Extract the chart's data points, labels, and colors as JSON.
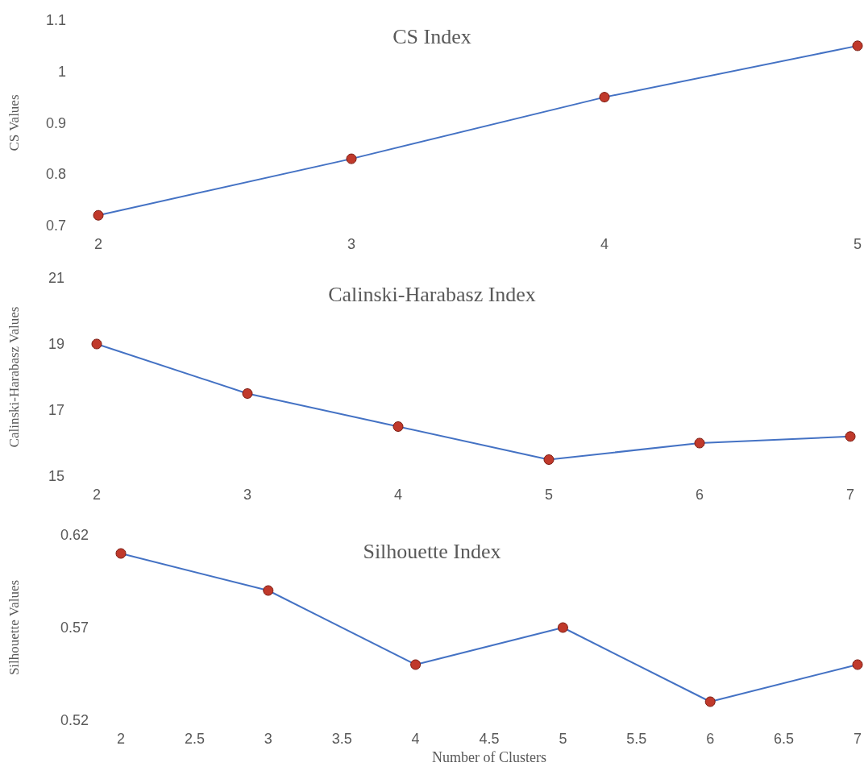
{
  "chart_data": [
    {
      "type": "line",
      "title": "CS Index",
      "ylabel": "CS Values",
      "x": [
        2,
        3,
        4,
        5
      ],
      "xlim": [
        2,
        5
      ],
      "xticks": [
        2,
        3,
        4,
        5
      ],
      "ylim": [
        0.7,
        1.1
      ],
      "yticks": [
        0.7,
        0.8,
        0.9,
        1,
        1.1
      ],
      "grid": false,
      "marker": "circle",
      "line_style": "solid",
      "series": [
        {
          "color": "#4472c4",
          "colors": [
            "#c0392b",
            "#c0392b",
            "#c0392b",
            "#c0392b"
          ],
          "values": [
            0.72,
            0.83,
            0.95,
            1.05
          ]
        }
      ]
    },
    {
      "type": "line",
      "title": "Calinski-Harabasz Index",
      "ylabel": "Calinski-Harabasz Values",
      "x": [
        2,
        3,
        4,
        5,
        6,
        7
      ],
      "xlim": [
        2,
        7
      ],
      "xticks": [
        2,
        3,
        4,
        5,
        6,
        7
      ],
      "ylim": [
        15,
        21
      ],
      "yticks": [
        15,
        17,
        19,
        21
      ],
      "grid": false,
      "marker": "circle",
      "line_style": "solid",
      "series": [
        {
          "color": "#4472c4",
          "colors": [
            "#c0392b",
            "#c0392b",
            "#c0392b",
            "#c0392b",
            "#c0392b",
            "#c0392b"
          ],
          "values": [
            19.0,
            17.5,
            16.5,
            15.5,
            16.0,
            16.2
          ]
        }
      ]
    },
    {
      "type": "line",
      "title": "Silhouette Index",
      "ylabel": "Silhouette Values",
      "xlabel": "Number of Clusters",
      "x": [
        2,
        3,
        4,
        5,
        6,
        7
      ],
      "xlim": [
        2,
        7
      ],
      "xticks": [
        2,
        2.5,
        3,
        3.5,
        4,
        4.5,
        5,
        5.5,
        6,
        6.5,
        7
      ],
      "ylim": [
        0.52,
        0.62
      ],
      "yticks": [
        0.52,
        0.57,
        0.62
      ],
      "grid": false,
      "marker": "circle",
      "line_style": "solid",
      "series": [
        {
          "color": "#4472c4",
          "colors": [
            "#c0392b",
            "#c0392b",
            "#c0392b",
            "#c0392b",
            "#c0392b",
            "#c0392b"
          ],
          "values": [
            0.61,
            0.59,
            0.55,
            0.57,
            0.53,
            0.55
          ]
        }
      ]
    }
  ]
}
